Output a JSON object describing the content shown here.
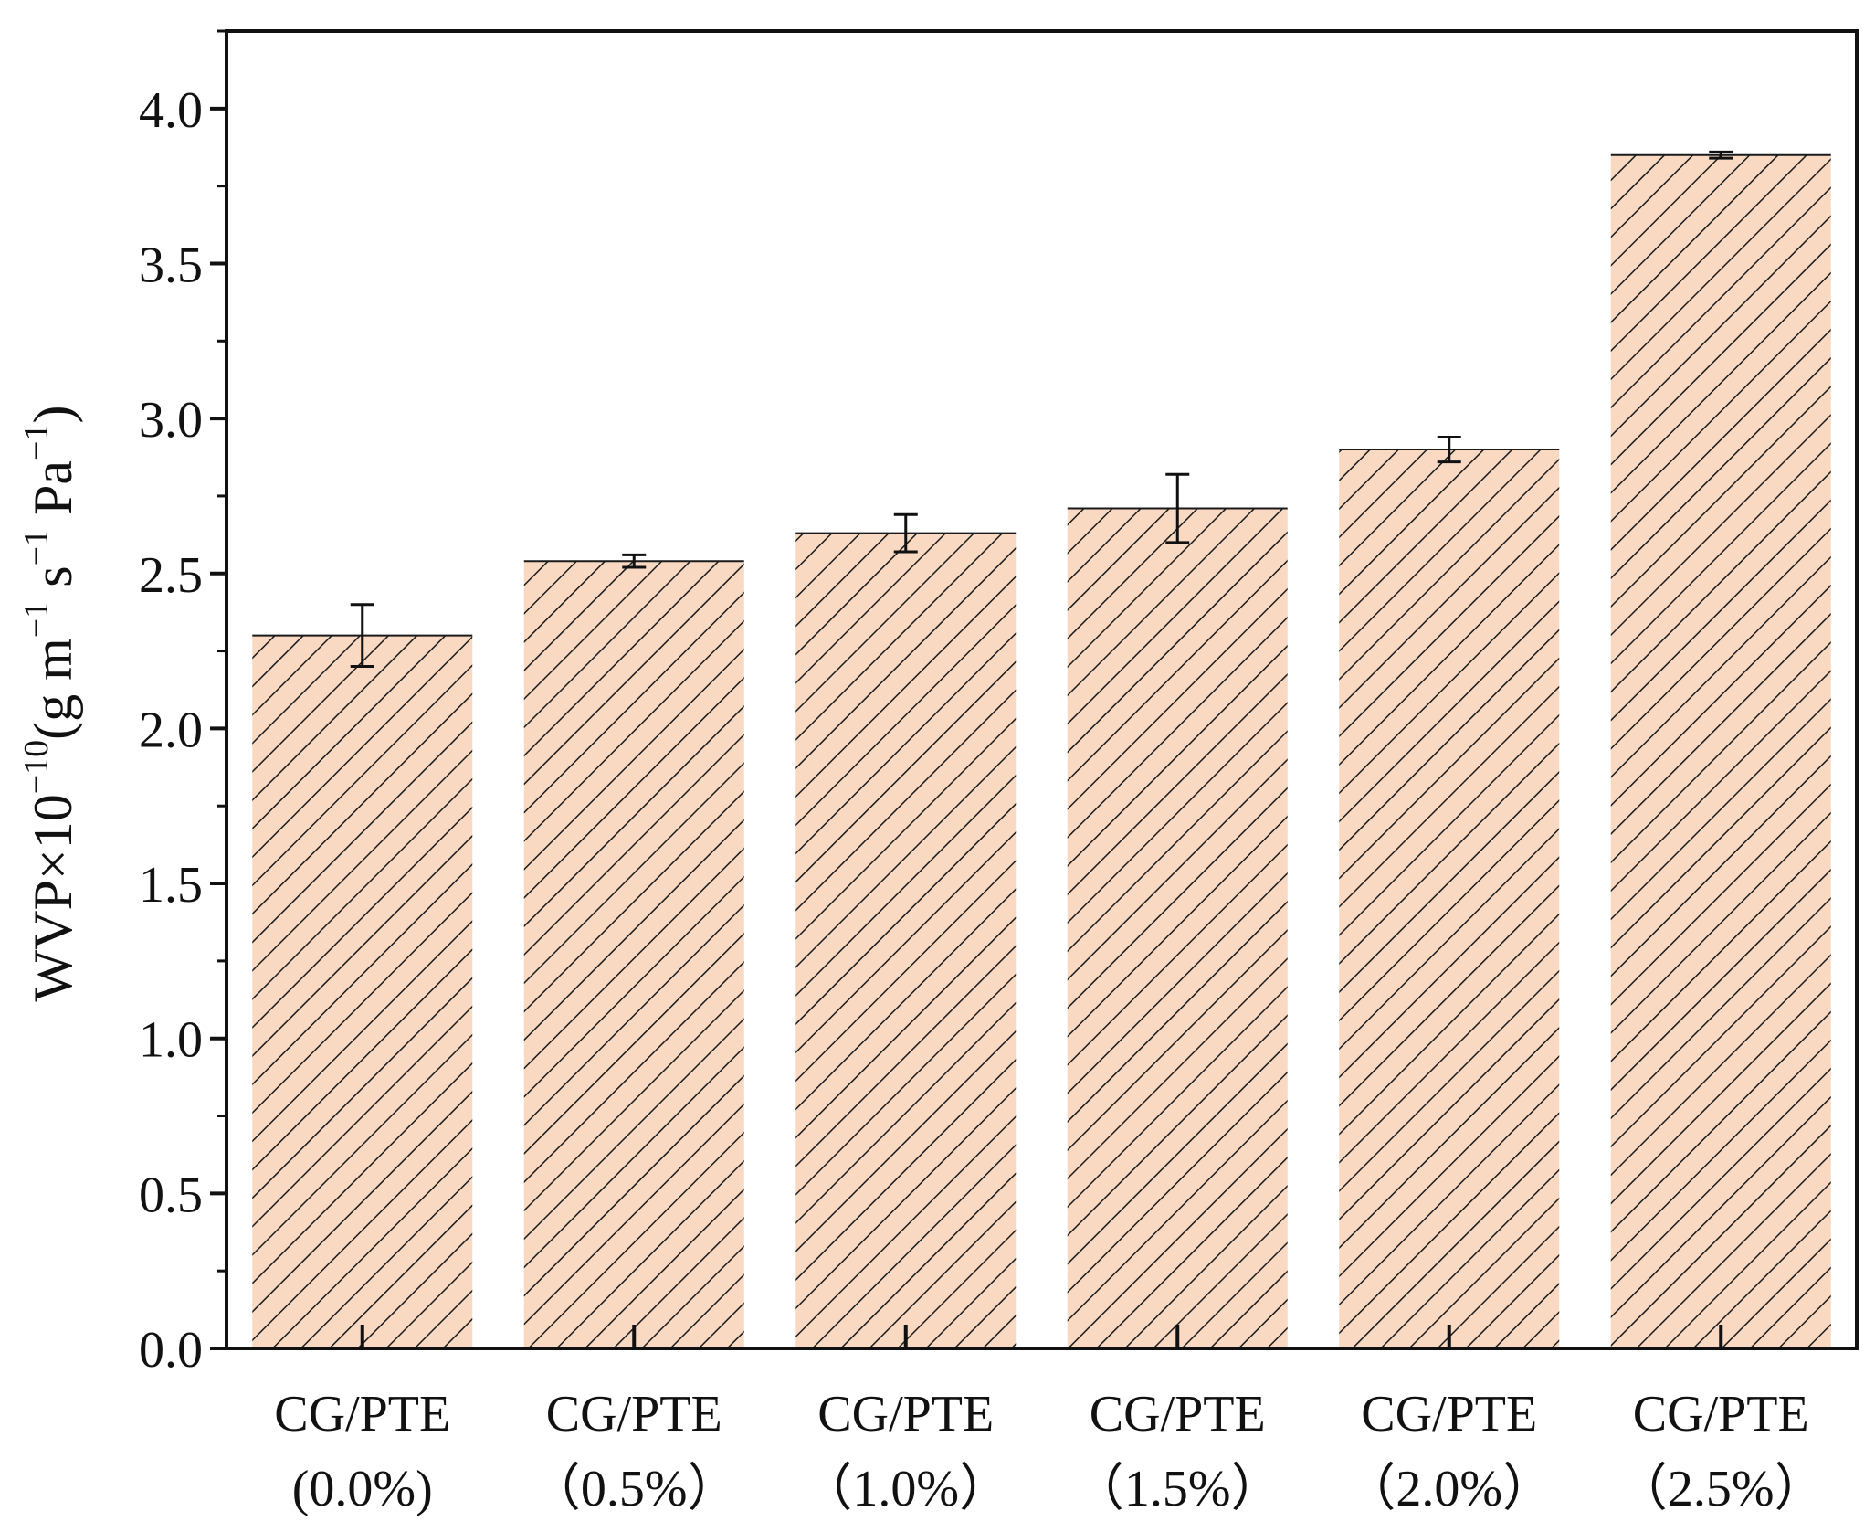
{
  "chart_data": {
    "type": "bar",
    "categories": [
      [
        "CG/PTE",
        "(0.0%)"
      ],
      [
        "CG/PTE",
        "（0.5%）"
      ],
      [
        "CG/PTE",
        "（1.0%）"
      ],
      [
        "CG/PTE",
        "（1.5%）"
      ],
      [
        "CG/PTE",
        "（2.0%）"
      ],
      [
        "CG/PTE",
        "（2.5%）"
      ]
    ],
    "values": [
      2.3,
      2.54,
      2.63,
      2.71,
      2.9,
      3.85
    ],
    "errors": [
      0.1,
      0.02,
      0.06,
      0.11,
      0.04,
      0.01
    ],
    "ylabel": {
      "base": "WVP×10",
      "exp": "−10",
      "open": "(g m",
      "exp_m": "−1",
      "mid": " s",
      "exp_s": "−1",
      "pa": " Pa",
      "exp_pa": "−1",
      "close": ")"
    },
    "ylim": [
      0,
      4.25
    ],
    "yticks": [
      "0.0",
      "0.5",
      "1.0",
      "1.5",
      "2.0",
      "2.5",
      "3.0",
      "3.5",
      "4.0"
    ],
    "grid": false,
    "legend": "none",
    "colors": {
      "bar_fill": "#F9D9C2",
      "hatch": "#1a1a1a",
      "axis": "#111111"
    }
  }
}
